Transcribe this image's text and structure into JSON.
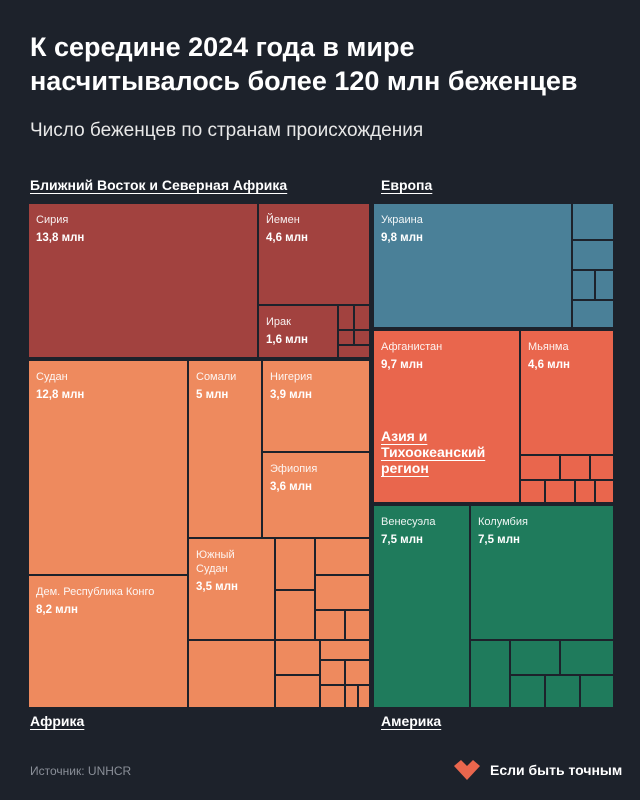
{
  "chart_data": {
    "type": "treemap",
    "title": "К середине 2024 года в мире насчитывалось более 120 млн беженцев",
    "subtitle": "Число беженцев по странам происхождения",
    "series": [
      {
        "name": "Ближний Восток и Северная Африка",
        "color": "#a2423f",
        "categories": [
          "Сирия",
          "Йемен",
          "Ирак"
        ],
        "values": [
          13.8,
          4.6,
          1.6
        ],
        "value_labels": [
          "13,8 млн",
          "4,6 млн",
          "1,6 млн"
        ]
      },
      {
        "name": "Африка",
        "color": "#ee8a5e",
        "categories": [
          "Судан",
          "Сомали",
          "Нигерия",
          "Эфиопия",
          "Южный Судан",
          "Дем. Республика Конго"
        ],
        "values": [
          12.8,
          5,
          3.9,
          3.6,
          3.5,
          8.2
        ],
        "value_labels": [
          "12,8 млн",
          "5 млн",
          "3,9 млн",
          "3,6 млн",
          "3,5 млн",
          "8,2 млн"
        ]
      },
      {
        "name": "Европа",
        "color": "#4a8098",
        "categories": [
          "Украина"
        ],
        "values": [
          9.8
        ],
        "value_labels": [
          "9,8 млн"
        ]
      },
      {
        "name": "Азия и Тихоокеанский регион",
        "color": "#e9664d",
        "categories": [
          "Афганистан",
          "Мьянма"
        ],
        "values": [
          9.7,
          4.6
        ],
        "value_labels": [
          "9,7 млн",
          "4,6 млн"
        ]
      },
      {
        "name": "Америка",
        "color": "#1f7b5c",
        "categories": [
          "Венесуэла",
          "Колумбия"
        ],
        "values": [
          7.5,
          7.5
        ],
        "value_labels": [
          "7,5 млн",
          "7,5 млн"
        ]
      }
    ],
    "source": "Источник: UNHCR",
    "brand": "Если быть точным"
  }
}
